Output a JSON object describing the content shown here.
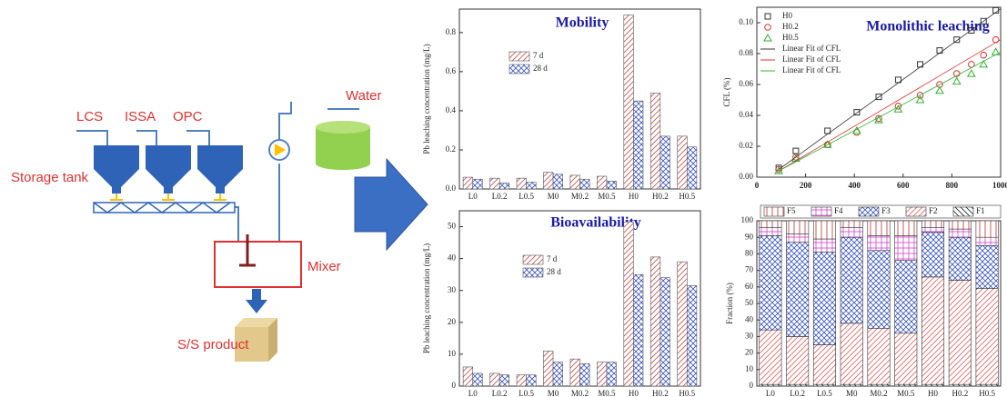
{
  "diagram": {
    "inputs": [
      "LCS",
      "ISSA",
      "OPC"
    ],
    "water": "Water",
    "storage": "Storage tank",
    "mixer": "Mixer",
    "product": "S/S product"
  },
  "chart_data": [
    {
      "type": "bar",
      "title": "Mobility",
      "ylabel": "Pb leaching concentration (mg/L)",
      "categories": [
        "L0",
        "L0.2",
        "L0.5",
        "M0",
        "M0.2",
        "M0.5",
        "H0",
        "H0.2",
        "H0.5"
      ],
      "series": [
        {
          "name": "7 d",
          "color": "#c0504d",
          "pattern": "diagonal",
          "values": [
            0.06,
            0.055,
            0.055,
            0.085,
            0.07,
            0.065,
            0.89,
            0.49,
            0.27
          ]
        },
        {
          "name": "28 d",
          "color": "#3a56c4",
          "pattern": "crosshatch",
          "values": [
            0.05,
            0.03,
            0.035,
            0.075,
            0.05,
            0.04,
            0.45,
            0.27,
            0.215
          ]
        }
      ],
      "ylim": [
        0,
        0.92
      ],
      "yticks": [
        {
          "value": 0,
          "label": "0.0"
        },
        0.2,
        0.4,
        0.6,
        0.8
      ]
    },
    {
      "type": "bar",
      "title": "Bioavailability",
      "ylabel": "Pb leaching concentration (mg/L)",
      "categories": [
        "L0",
        "L0.2",
        "L0.5",
        "M0",
        "M0.2",
        "M0.5",
        "H0",
        "H0.2",
        "H0.5"
      ],
      "series": [
        {
          "name": "7 d",
          "color": "#c0504d",
          "pattern": "diagonal",
          "values": [
            6,
            4,
            3.5,
            11,
            8.5,
            7.5,
            51.5,
            40.5,
            39
          ]
        },
        {
          "name": "28 d",
          "color": "#3a56c4",
          "pattern": "crosshatch",
          "values": [
            4,
            3.5,
            3.5,
            7.5,
            7,
            7.5,
            35,
            34,
            31.5
          ]
        }
      ],
      "ylim": [
        0,
        55
      ],
      "yticks": [
        0,
        10,
        20,
        30,
        40,
        50
      ]
    },
    {
      "type": "scatter",
      "title": "Monolithic leaching",
      "ylabel": "CFL (%)",
      "series": [
        {
          "name": "H0",
          "color": "#333333",
          "marker": "square",
          "x": [
            90,
            160,
            290,
            410,
            500,
            580,
            670,
            750,
            820,
            880,
            930,
            980
          ],
          "values": [
            0.006,
            0.017,
            0.03,
            0.042,
            0.052,
            0.063,
            0.073,
            0.082,
            0.089,
            0.095,
            0.101,
            0.108
          ]
        },
        {
          "name": "H0.2",
          "color": "#e03030",
          "marker": "circle",
          "x": [
            90,
            160,
            290,
            410,
            500,
            580,
            670,
            750,
            820,
            880,
            930,
            980
          ],
          "values": [
            0.005,
            0.013,
            0.021,
            0.029,
            0.038,
            0.046,
            0.053,
            0.06,
            0.067,
            0.073,
            0.079,
            0.089
          ]
        },
        {
          "name": "H0.5",
          "color": "#30b030",
          "marker": "triangle",
          "x": [
            90,
            160,
            290,
            410,
            500,
            580,
            670,
            750,
            820,
            880,
            930,
            980
          ],
          "values": [
            0.004,
            0.012,
            0.021,
            0.03,
            0.037,
            0.044,
            0.05,
            0.056,
            0.062,
            0.067,
            0.073,
            0.081
          ]
        },
        {
          "name": "Linear Fit of CFL",
          "color": "#333333",
          "line": true,
          "x": [
            90,
            1000
          ],
          "values": [
            0.005,
            0.109
          ]
        },
        {
          "name": "Linear Fit of CFL",
          "color": "#e03030",
          "line": true,
          "x": [
            90,
            1000
          ],
          "values": [
            0.004,
            0.089
          ]
        },
        {
          "name": "Linear Fit of CFL",
          "color": "#30b030",
          "line": true,
          "x": [
            90,
            1000
          ],
          "values": [
            0.004,
            0.081
          ]
        }
      ],
      "xlim": [
        0,
        1000
      ],
      "xticks": [
        0,
        200,
        400,
        600,
        800,
        1000
      ],
      "ylim": [
        0,
        0.11
      ],
      "yticks": [
        {
          "value": 0,
          "label": "0.00"
        },
        0.02,
        0.04,
        0.06,
        0.08,
        {
          "value": 0.1,
          "label": "0.10"
        }
      ]
    },
    {
      "type": "stacked_bar",
      "ylabel": "Fraction (%)",
      "categories": [
        "L0",
        "L0.2",
        "L0.5",
        "M0",
        "M0.2",
        "M0.5",
        "H0",
        "H0.2",
        "H0.5"
      ],
      "series": [
        {
          "name": "F1",
          "color": "#222222",
          "pattern": "backdiagonal",
          "values": [
            1,
            1,
            1,
            1,
            1,
            1,
            1,
            1,
            1
          ]
        },
        {
          "name": "F2",
          "color": "#e06060",
          "pattern": "diagonal",
          "values": [
            33,
            29,
            24,
            37,
            34,
            31,
            65,
            63,
            58
          ]
        },
        {
          "name": "F3",
          "color": "#3a56c4",
          "pattern": "crosshatch",
          "values": [
            57,
            57,
            56,
            52,
            47,
            44,
            27,
            26,
            26
          ]
        },
        {
          "name": "F4",
          "color": "#d040d0",
          "pattern": "grid",
          "values": [
            5,
            5,
            8,
            6,
            9,
            15,
            3,
            5,
            5
          ]
        },
        {
          "name": "F5",
          "color": "#c03030",
          "pattern": "vertical",
          "values": [
            4,
            8,
            11,
            4,
            9,
            9,
            4,
            5,
            10
          ]
        }
      ],
      "ylim": [
        0,
        100
      ],
      "yticks": [
        0,
        10,
        20,
        30,
        40,
        50,
        60,
        70,
        80,
        90,
        100
      ]
    }
  ]
}
